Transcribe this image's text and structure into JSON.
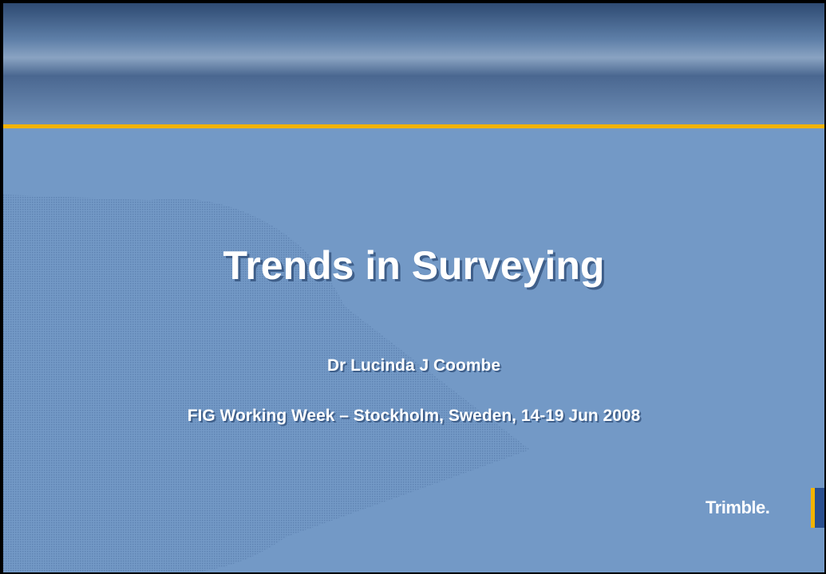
{
  "slide": {
    "title": "Trends in Surveying",
    "author": "Dr Lucinda J Coombe",
    "event": "FIG Working Week – Stockholm, Sweden, 14-19 Jun 2008",
    "logo": "Trimble."
  }
}
